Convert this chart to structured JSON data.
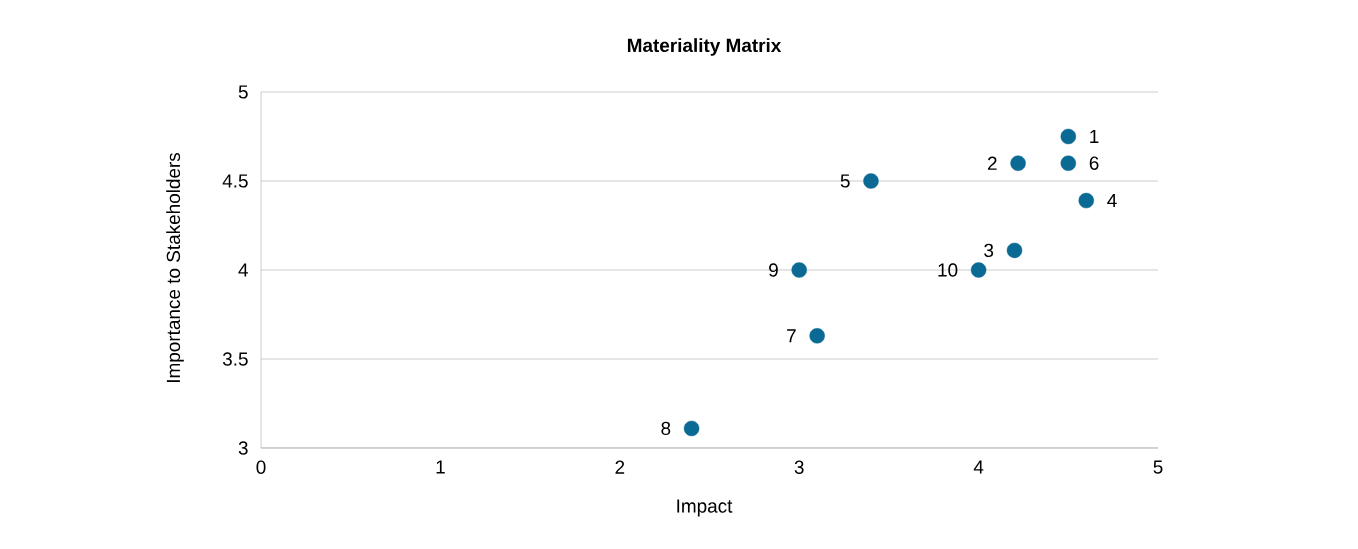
{
  "chart_data": {
    "type": "scatter",
    "title": "Materiality Matrix",
    "xlabel": "Impact",
    "ylabel": "Importance to Stakeholders",
    "x": [
      4.5,
      4.22,
      4.2,
      4.6,
      3.4,
      4.5,
      3.1,
      2.4,
      3.0,
      4.0
    ],
    "values": [
      4.75,
      4.6,
      4.11,
      4.39,
      4.5,
      4.6,
      3.63,
      3.11,
      4.0,
      4.0
    ],
    "color": "#0b6a94",
    "marker": "circle",
    "grid": "y",
    "xlim": [
      0,
      5
    ],
    "ylim": [
      3,
      5
    ],
    "xticks": [
      0,
      1,
      2,
      3,
      4,
      5
    ],
    "yticks": [
      3,
      3.5,
      4,
      4.5,
      5
    ],
    "annotations": [
      {
        "text": "1",
        "x": 4.5,
        "y": 4.75
      },
      {
        "text": "2",
        "x": 4.22,
        "y": 4.6
      },
      {
        "text": "3",
        "x": 4.2,
        "y": 4.11
      },
      {
        "text": "4",
        "x": 4.6,
        "y": 4.39
      },
      {
        "text": "5",
        "x": 3.4,
        "y": 4.5
      },
      {
        "text": "6",
        "x": 4.5,
        "y": 4.6
      },
      {
        "text": "7",
        "x": 3.1,
        "y": 3.63
      },
      {
        "text": "8",
        "x": 2.4,
        "y": 3.11
      },
      {
        "text": "9",
        "x": 3.0,
        "y": 4.0
      },
      {
        "text": "10",
        "x": 4.0,
        "y": 4.0
      }
    ]
  }
}
